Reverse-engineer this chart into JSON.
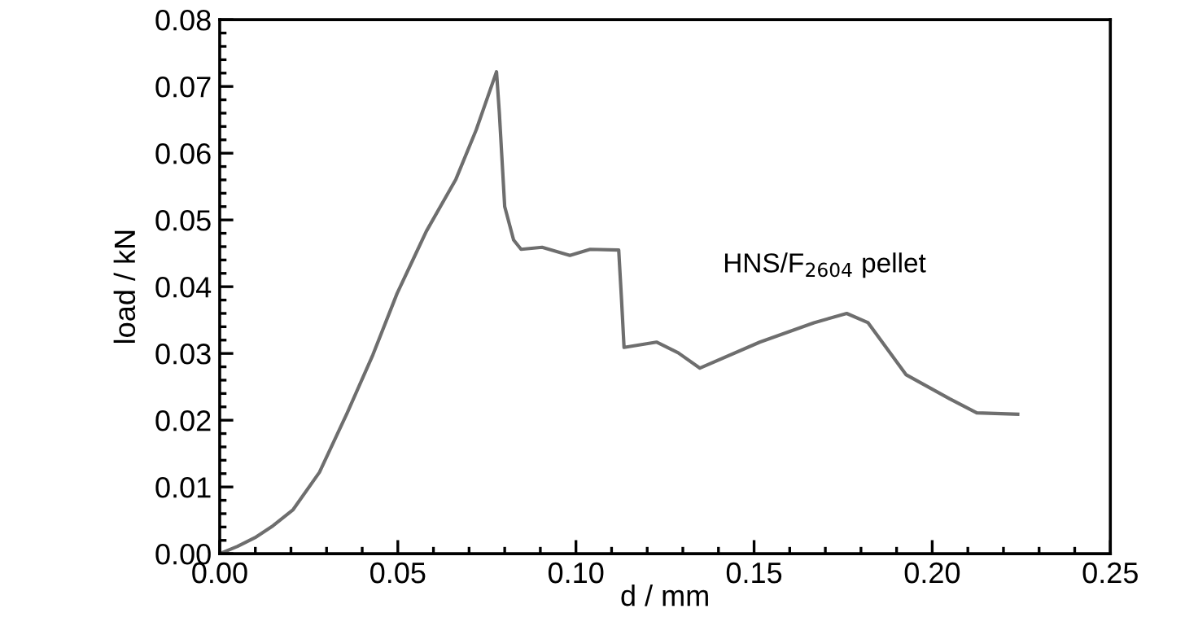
{
  "chart_data": {
    "type": "line",
    "xlabel": "d / mm",
    "ylabel": "load / kN",
    "series": [
      {
        "name": "HNS/F$_{2604}$ pellet",
        "color": "#6e6e6e",
        "x": [
          0,
          0.005,
          0.0099,
          0.015,
          0.0206,
          0.028,
          0.0358,
          0.043,
          0.0498,
          0.058,
          0.0663,
          0.072,
          0.0777,
          0.0785,
          0.08,
          0.0825,
          0.0846,
          0.0905,
          0.0983,
          0.104,
          0.112,
          0.1128,
          0.1135,
          0.1226,
          0.1287,
          0.1348,
          0.1516,
          0.1668,
          0.176,
          0.182,
          0.1927,
          0.2049,
          0.2125,
          0.224
        ],
        "values": [
          0,
          0.0011,
          0.0024,
          0.0042,
          0.0066,
          0.0122,
          0.0211,
          0.0298,
          0.039,
          0.0483,
          0.0561,
          0.0635,
          0.0722,
          0.066,
          0.052,
          0.047,
          0.0456,
          0.0459,
          0.0447,
          0.0456,
          0.0455,
          0.038,
          0.0309,
          0.0317,
          0.0301,
          0.0278,
          0.0317,
          0.0346,
          0.036,
          0.0346,
          0.0268,
          0.0232,
          0.0211,
          0.0209
        ]
      }
    ],
    "xlim": [
      0,
      0.25
    ],
    "xticks": [
      {
        "value": 0,
        "label": "0.00"
      },
      {
        "value": 0.05,
        "label": "0.05"
      },
      {
        "value": 0.1,
        "label": "0.10"
      },
      {
        "value": 0.15,
        "label": "0.15"
      },
      {
        "value": 0.2,
        "label": "0.20"
      },
      {
        "value": 0.25,
        "label": "0.25"
      }
    ],
    "ylim": [
      0,
      0.08
    ],
    "yticks": [
      {
        "value": 0,
        "label": "0.00"
      },
      {
        "value": 0.01,
        "label": "0.01"
      },
      {
        "value": 0.02,
        "label": "0.02"
      },
      {
        "value": 0.03,
        "label": "0.03"
      },
      {
        "value": 0.04,
        "label": "0.04"
      },
      {
        "value": 0.05,
        "label": "0.05"
      },
      {
        "value": 0.06,
        "label": "0.06"
      },
      {
        "value": 0.07,
        "label": "0.07"
      },
      {
        "value": 0.08,
        "label": "0.08"
      }
    ],
    "grid": false,
    "legend": false,
    "marker": "none",
    "line_style": "solid"
  }
}
